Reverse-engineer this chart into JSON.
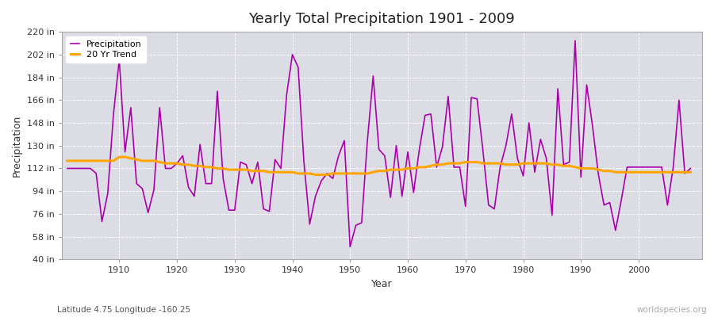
{
  "title": "Yearly Total Precipitation 1901 - 2009",
  "xlabel": "Year",
  "ylabel": "Precipitation",
  "subtitle": "Latitude 4.75 Longitude -160.25",
  "watermark": "worldspecies.org",
  "ylim": [
    40,
    220
  ],
  "yticks": [
    40,
    58,
    76,
    94,
    112,
    130,
    148,
    166,
    184,
    202,
    220
  ],
  "ytick_labels": [
    "40 in",
    "58 in",
    "76 in",
    "94 in",
    "112 in",
    "130 in",
    "148 in",
    "166 in",
    "184 in",
    "202 in",
    "220 in"
  ],
  "fig_bg_color": "#ffffff",
  "plot_bg_color": "#dcdce4",
  "precip_color": "#aa00aa",
  "trend_color": "#FFA500",
  "grid_color": "#ffffff",
  "years": [
    1901,
    1902,
    1903,
    1904,
    1905,
    1906,
    1907,
    1908,
    1909,
    1910,
    1911,
    1912,
    1913,
    1914,
    1915,
    1916,
    1917,
    1918,
    1919,
    1920,
    1921,
    1922,
    1923,
    1924,
    1925,
    1926,
    1927,
    1928,
    1929,
    1930,
    1931,
    1932,
    1933,
    1934,
    1935,
    1936,
    1937,
    1938,
    1939,
    1940,
    1941,
    1942,
    1943,
    1944,
    1945,
    1946,
    1947,
    1948,
    1949,
    1950,
    1951,
    1952,
    1953,
    1954,
    1955,
    1956,
    1957,
    1958,
    1959,
    1960,
    1961,
    1962,
    1963,
    1964,
    1965,
    1966,
    1967,
    1968,
    1969,
    1970,
    1971,
    1972,
    1973,
    1974,
    1975,
    1976,
    1977,
    1978,
    1979,
    1980,
    1981,
    1982,
    1983,
    1984,
    1985,
    1986,
    1987,
    1988,
    1989,
    1990,
    1991,
    1992,
    1993,
    1994,
    1995,
    1996,
    1997,
    1998,
    1999,
    2000,
    2001,
    2002,
    2003,
    2004,
    2005,
    2006,
    2007,
    2008,
    2009
  ],
  "precip": [
    112,
    112,
    112,
    112,
    112,
    108,
    70,
    92,
    155,
    198,
    125,
    160,
    100,
    96,
    77,
    95,
    160,
    112,
    112,
    116,
    122,
    97,
    90,
    131,
    100,
    100,
    173,
    104,
    79,
    79,
    117,
    115,
    100,
    117,
    80,
    78,
    119,
    112,
    170,
    202,
    192,
    117,
    68,
    90,
    102,
    108,
    104,
    122,
    134,
    50,
    67,
    69,
    134,
    185,
    127,
    122,
    89,
    130,
    90,
    125,
    93,
    127,
    154,
    155,
    113,
    129,
    169,
    113,
    113,
    82,
    168,
    167,
    127,
    83,
    80,
    113,
    130,
    155,
    120,
    106,
    148,
    109,
    135,
    120,
    75,
    175,
    115,
    117,
    213,
    105,
    178,
    146,
    108,
    83,
    85,
    63,
    87,
    113,
    113,
    113,
    113,
    113,
    113,
    113,
    83,
    113,
    166,
    108,
    112
  ],
  "trend": [
    118,
    118,
    118,
    118,
    118,
    118,
    118,
    118,
    118,
    121,
    121,
    120,
    119,
    118,
    118,
    118,
    117,
    116,
    116,
    116,
    115,
    115,
    114,
    114,
    113,
    113,
    112,
    112,
    111,
    111,
    111,
    111,
    110,
    110,
    110,
    109,
    109,
    109,
    109,
    109,
    108,
    108,
    108,
    107,
    107,
    107,
    108,
    108,
    108,
    108,
    108,
    108,
    108,
    109,
    110,
    110,
    111,
    111,
    111,
    112,
    112,
    113,
    113,
    114,
    115,
    115,
    116,
    116,
    116,
    117,
    117,
    117,
    116,
    116,
    116,
    116,
    115,
    115,
    115,
    116,
    116,
    116,
    116,
    116,
    115,
    115,
    114,
    114,
    113,
    112,
    112,
    112,
    111,
    110,
    110,
    109,
    109,
    109,
    109,
    109,
    109,
    109,
    109,
    109,
    109,
    109,
    109,
    109,
    109
  ]
}
